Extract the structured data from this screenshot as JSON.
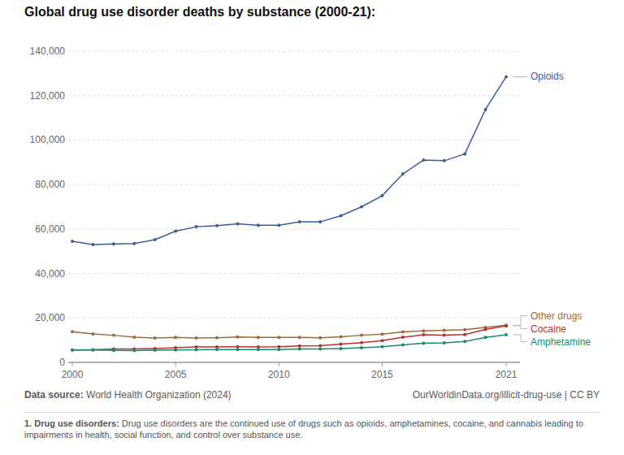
{
  "chart_data": {
    "type": "line",
    "title": "Global drug use disorder deaths by substance (2000-21):",
    "x": [
      2000,
      2001,
      2002,
      2003,
      2004,
      2005,
      2006,
      2007,
      2008,
      2009,
      2010,
      2011,
      2012,
      2013,
      2014,
      2015,
      2016,
      2017,
      2018,
      2019,
      2020,
      2021
    ],
    "xlim": [
      2000,
      2021
    ],
    "xticks": [
      2000,
      2005,
      2010,
      2015,
      2021
    ],
    "ylim": [
      0,
      140000
    ],
    "yticks": [
      0,
      {
        "value": 20000,
        "label": "20,000"
      },
      {
        "value": 40000,
        "label": "40,000"
      },
      {
        "value": 60000,
        "label": "60,000"
      },
      {
        "value": 80000,
        "label": "80,000"
      },
      {
        "value": 100000,
        "label": "100,000"
      },
      {
        "value": 120000,
        "label": "120,000"
      },
      {
        "value": 140000,
        "label": "140,000"
      }
    ],
    "grid": true,
    "legend": "right",
    "marker": "circle",
    "series": [
      {
        "name": "Opioids",
        "color": "#3a5e9c",
        "values": [
          54500,
          53000,
          53300,
          53500,
          55200,
          59000,
          61000,
          61500,
          62300,
          61700,
          61700,
          63200,
          63200,
          66000,
          70000,
          75000,
          84800,
          91000,
          90700,
          93800,
          113800,
          128500
        ]
      },
      {
        "name": "Other drugs",
        "color": "#9c6a36",
        "values": [
          13800,
          12800,
          12200,
          11300,
          11000,
          11200,
          11000,
          11100,
          11400,
          11200,
          11200,
          11200,
          11100,
          11500,
          12200,
          12700,
          13700,
          14200,
          14400,
          14700,
          15700,
          16700
        ]
      },
      {
        "name": "Cocaine",
        "color": "#b13232",
        "values": [
          5600,
          5700,
          6000,
          6000,
          6200,
          6600,
          6900,
          6900,
          7000,
          6900,
          7000,
          7400,
          7500,
          8200,
          8900,
          9800,
          11300,
          12400,
          12200,
          12500,
          14800,
          16400
        ]
      },
      {
        "name": "Amphetamine",
        "color": "#198a6b",
        "values": [
          5600,
          5600,
          5400,
          5300,
          5500,
          5600,
          5700,
          5800,
          5800,
          5800,
          5800,
          6000,
          6000,
          6200,
          6600,
          7000,
          7900,
          8600,
          8800,
          9400,
          11200,
          12400
        ]
      }
    ],
    "source_label": "Data source:",
    "source": "World Health Organization (2024)",
    "credit": "OurWorldinData.org/illicit-drug-use | CC BY",
    "footnote_label": "1. Drug use disorders:",
    "footnote": "Drug use disorders are the continued use of drugs such as opioids, amphetamines, cocaine, and cannabis leading to impairments in health, social function, and control over substance use."
  }
}
